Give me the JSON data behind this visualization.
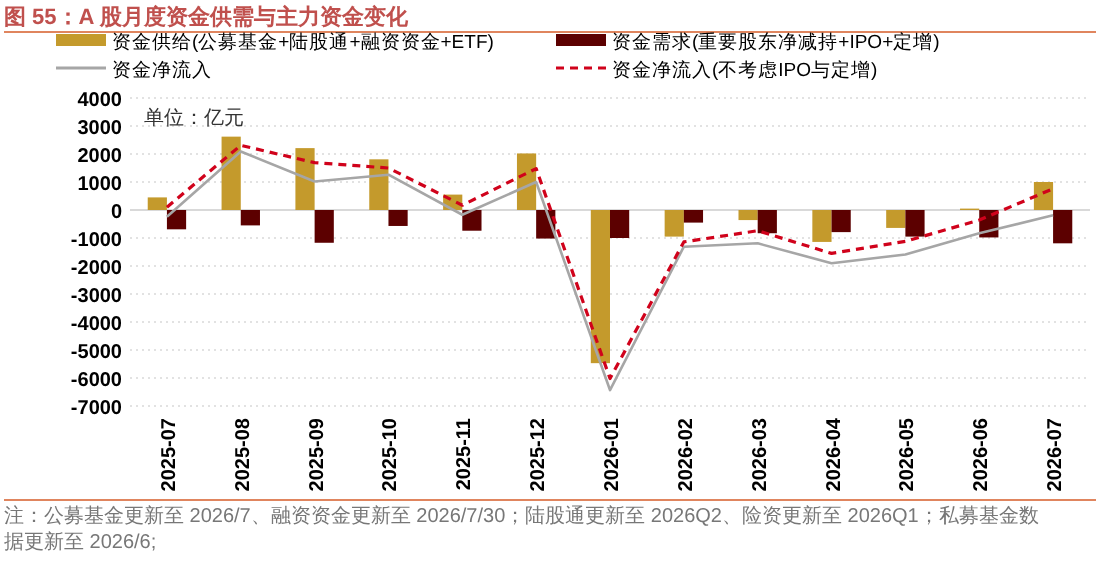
{
  "chart_data": {
    "type": "bar",
    "title": "图 55：A 股月度资金供需与主力资金变化",
    "categories": [
      "2025-07",
      "2025-08",
      "2025-09",
      "2025-10",
      "2025-11",
      "2025-12",
      "2026-01",
      "2026-02",
      "2026-03",
      "2026-04",
      "2026-05",
      "2026-06",
      "2026-07"
    ],
    "series": [
      {
        "name": "资金供给(公募基金+陆股通+融资资金+ETF)",
        "color": "#c49a2c",
        "values": [
          450,
          2620,
          2210,
          1810,
          550,
          2020,
          -5470,
          -950,
          -360,
          -1140,
          -640,
          50,
          1000
        ]
      },
      {
        "name": "资金需求(重要股东净减持+IPO+定增)",
        "color": "#5c0000",
        "values": [
          -690,
          -550,
          -1170,
          -570,
          -740,
          -1020,
          -1000,
          -450,
          -830,
          -790,
          -950,
          -980,
          -1190
        ]
      },
      {
        "name": "资金净流入",
        "type": "line",
        "color": "#a6a6a6",
        "line_style": "solid",
        "values": [
          -240,
          2090,
          1020,
          1260,
          -170,
          1000,
          -6430,
          -1310,
          -1190,
          -1900,
          -1590,
          -830,
          -190
        ]
      },
      {
        "name": "资金净流入(不考虑IPO与定增)",
        "type": "line",
        "color": "#d0021b",
        "line_style": "dashed",
        "values": [
          100,
          2310,
          1690,
          1500,
          170,
          1480,
          -6020,
          -1140,
          -740,
          -1550,
          -1120,
          -360,
          760
        ]
      }
    ],
    "ylim": [
      -7000,
      4000
    ],
    "yticks": [
      -7000,
      -6000,
      -5000,
      -4000,
      -3000,
      -2000,
      -1000,
      0,
      1000,
      2000,
      3000,
      4000
    ],
    "grid": "y",
    "legend": "top",
    "annotations": [
      "单位：亿元",
      "注：公募基金更新至 2026/7、融资资金更新至 2026/7/30；陆股通更新至 2026Q2、险资更新至 2026Q1；私募基金数据更新至 2026/6;"
    ]
  }
}
